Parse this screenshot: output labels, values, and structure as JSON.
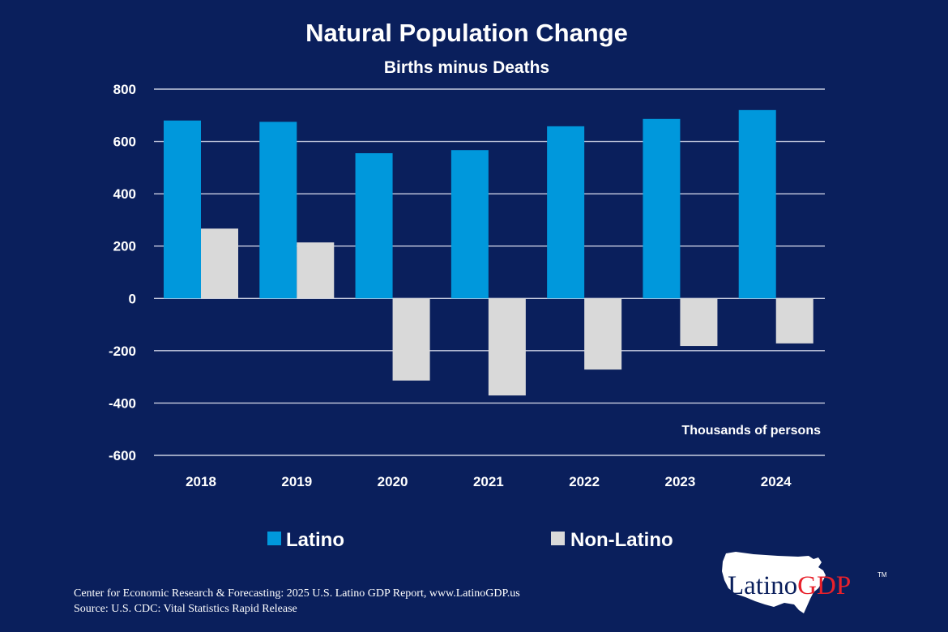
{
  "chart_data": {
    "type": "bar",
    "title": "Natural Population Change",
    "subtitle": "Births minus Deaths",
    "units_label": "Thousands of persons",
    "categories": [
      "2018",
      "2019",
      "2020",
      "2021",
      "2022",
      "2023",
      "2024"
    ],
    "series": [
      {
        "name": "Latino",
        "values": [
          680,
          675,
          555,
          567,
          658,
          686,
          720
        ],
        "color": "#0098dc"
      },
      {
        "name": "Non-Latino",
        "values": [
          267,
          214,
          -314,
          -371,
          -272,
          -182,
          -172
        ],
        "color": "#d9d9d9"
      }
    ],
    "ylim": [
      -600,
      800
    ],
    "yticks": [
      "800",
      "600",
      "400",
      "200",
      "0",
      "-200",
      "-400",
      "-600"
    ],
    "grid": true,
    "legend_position": "bottom"
  },
  "footer": {
    "line1": "Center for Economic Research & Forecasting: 2025 U.S. Latino GDP Report, www.LatinoGDP.us",
    "line2": "Source: U.S. CDC: Vital Statistics Rapid Release"
  },
  "logo": {
    "text_part1": "Latino",
    "text_part2": "GDP",
    "trademark": "TM",
    "color1": "#0a1f5c",
    "color2": "#e8212b"
  },
  "colors": {
    "background": "#0a1f5c",
    "gridline": "#c8cde0"
  }
}
